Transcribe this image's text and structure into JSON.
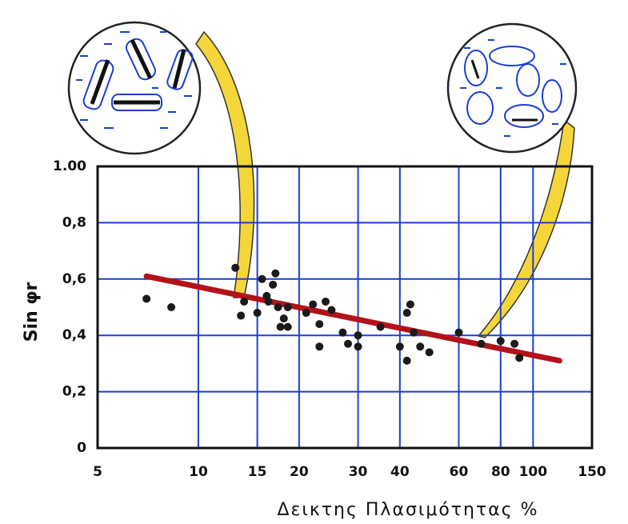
{
  "chart_data": {
    "type": "scatter",
    "x_label": "Δεικτης Πλασιμότητας %",
    "y_label": "Sin φr",
    "log_x": true,
    "grid": true,
    "xlim": [
      5,
      150
    ],
    "xticks": [
      5,
      10,
      15,
      20,
      30,
      40,
      60,
      80,
      100,
      150
    ],
    "ylim": [
      0,
      1
    ],
    "yticks": [
      {
        "value": 0,
        "label": "0"
      },
      {
        "value": 0.2,
        "label": "0,2"
      },
      {
        "value": 0.4,
        "label": "0,4"
      },
      {
        "value": 0.6,
        "label": "0,6"
      },
      {
        "value": 0.8,
        "label": "0,8"
      },
      {
        "value": 1,
        "label": "1.00"
      }
    ],
    "color": "#1a1a1a",
    "x": [
      7.0,
      8.3,
      12.9,
      13.4,
      13.7,
      15,
      15.5,
      16,
      16.2,
      16.7,
      17,
      17.3,
      17.6,
      18,
      18.5,
      18.5,
      21,
      22,
      23,
      23,
      24,
      25,
      27,
      28,
      30,
      30,
      35,
      40,
      42,
      43,
      44,
      42,
      46,
      49,
      60,
      70,
      80,
      88,
      91
    ],
    "y": [
      0.53,
      0.5,
      0.64,
      0.47,
      0.52,
      0.48,
      0.6,
      0.54,
      0.52,
      0.58,
      0.62,
      0.5,
      0.43,
      0.46,
      0.43,
      0.5,
      0.48,
      0.51,
      0.44,
      0.36,
      0.52,
      0.49,
      0.41,
      0.37,
      0.4,
      0.36,
      0.43,
      0.36,
      0.48,
      0.51,
      0.41,
      0.31,
      0.36,
      0.34,
      0.41,
      0.37,
      0.38,
      0.37,
      0.32
    ],
    "fit": {
      "x": [
        7,
        120
      ],
      "y": [
        0.61,
        0.31
      ],
      "color": "#b3121a"
    }
  }
}
